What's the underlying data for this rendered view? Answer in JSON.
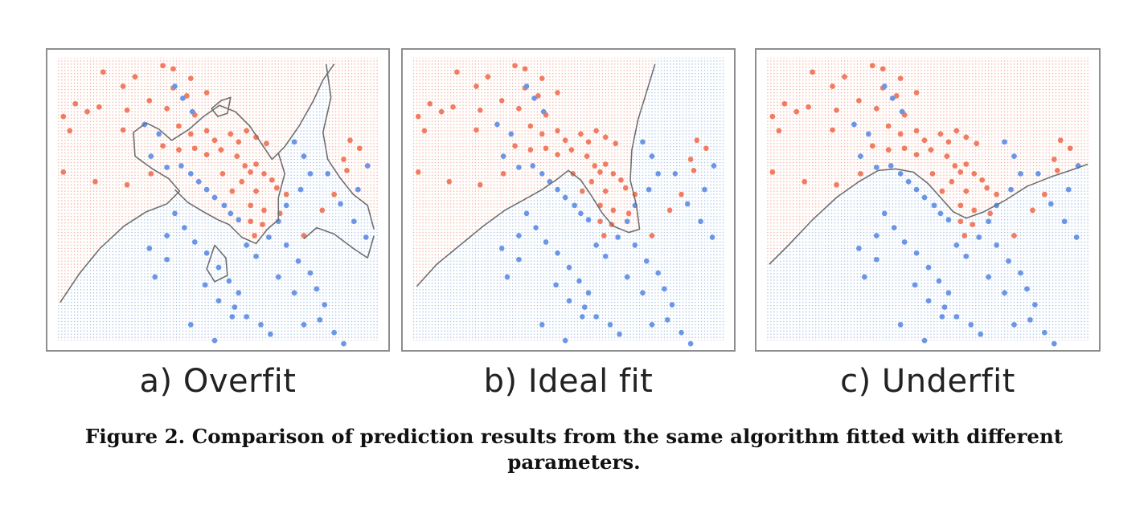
{
  "panels": [
    {
      "id": "a",
      "label": "a) Overfit",
      "boundary_fit": "overfit"
    },
    {
      "id": "b",
      "label": "b) Ideal fit",
      "boundary_fit": "ideal"
    },
    {
      "id": "c",
      "label": "c) Underfit",
      "boundary_fit": "underfit"
    }
  ],
  "caption": "Figure 2. Comparison of prediction results from the same algorithm fitted with different parameters.",
  "colors": {
    "class_red": "#f07c61",
    "class_blue": "#6b96e6",
    "region_red": "#f3a996",
    "region_blue": "#9ebde6",
    "boundary": "#6e6e6e",
    "frame": "#8e8e8e"
  }
}
